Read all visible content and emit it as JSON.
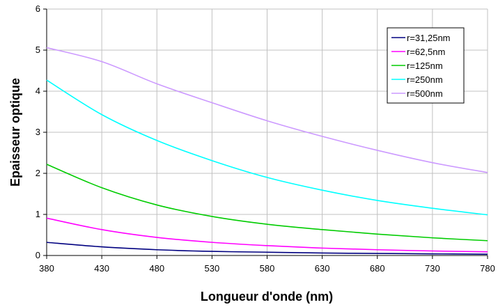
{
  "chart_data": {
    "type": "line",
    "title": "",
    "xlabel": "Longueur d'onde (nm)",
    "ylabel": "Epaisseur optique",
    "xlim": [
      380,
      780
    ],
    "ylim": [
      0,
      6
    ],
    "xticks": [
      380,
      430,
      480,
      530,
      580,
      630,
      680,
      730,
      780
    ],
    "yticks": [
      0,
      1,
      2,
      3,
      4,
      5,
      6
    ],
    "grid": true,
    "legend_position": "top-right",
    "x": [
      380,
      430,
      480,
      530,
      580,
      630,
      680,
      730,
      780
    ],
    "series": [
      {
        "name": "r=31,25nm",
        "color": "#000080",
        "values": [
          0.32,
          0.21,
          0.14,
          0.1,
          0.08,
          0.06,
          0.05,
          0.04,
          0.03
        ]
      },
      {
        "name": "r=62,5nm",
        "color": "#ff00ff",
        "values": [
          0.91,
          0.63,
          0.44,
          0.32,
          0.24,
          0.18,
          0.14,
          0.11,
          0.09
        ]
      },
      {
        "name": "r=125nm",
        "color": "#00cc00",
        "values": [
          2.22,
          1.65,
          1.23,
          0.95,
          0.76,
          0.63,
          0.52,
          0.43,
          0.36
        ]
      },
      {
        "name": "r=250nm",
        "color": "#00ffff",
        "values": [
          4.27,
          3.43,
          2.8,
          2.31,
          1.9,
          1.59,
          1.34,
          1.15,
          0.99
        ]
      },
      {
        "name": "r=500nm",
        "color": "#cc99ff",
        "values": [
          5.06,
          4.72,
          4.18,
          3.72,
          3.28,
          2.9,
          2.56,
          2.26,
          2.02
        ]
      }
    ]
  }
}
